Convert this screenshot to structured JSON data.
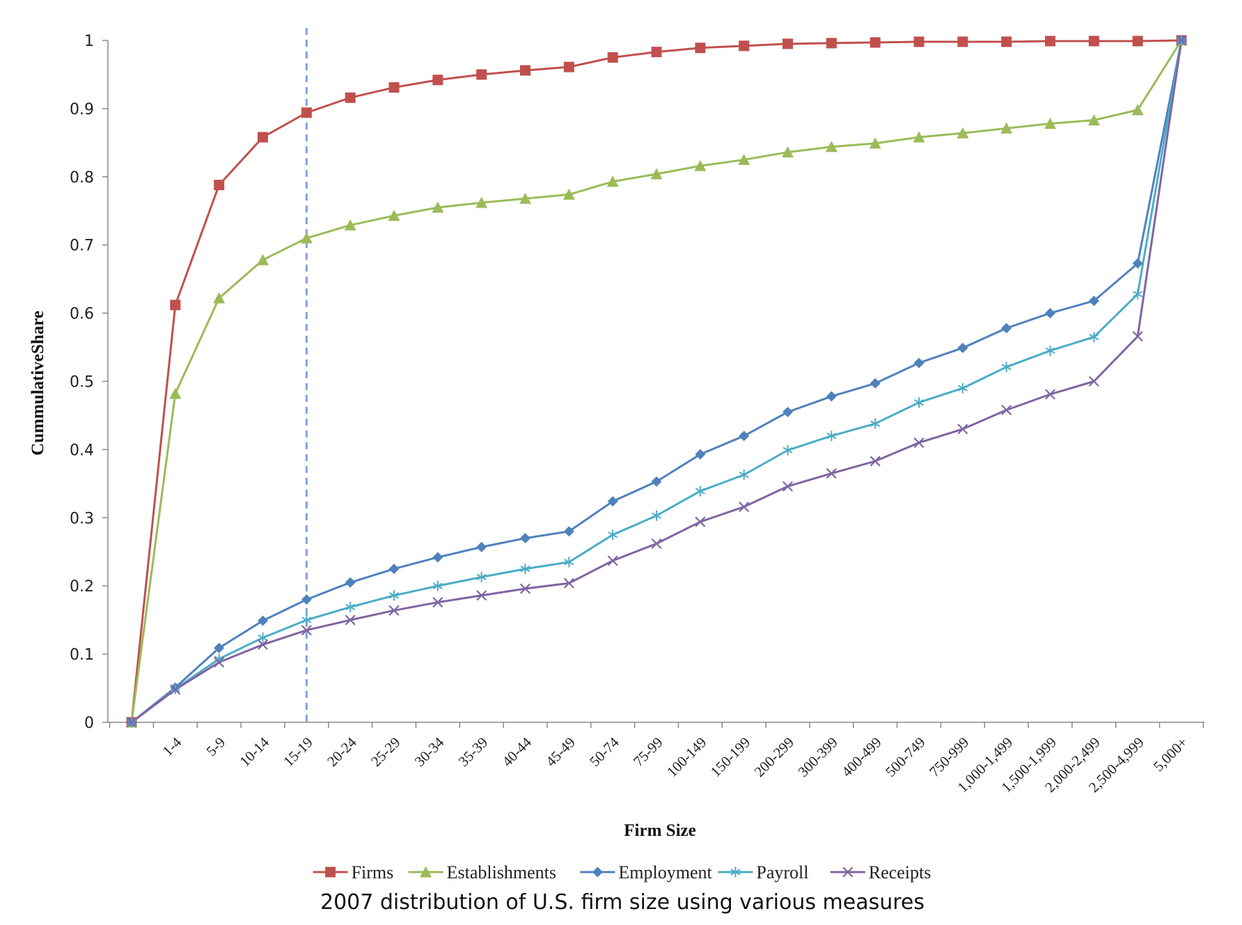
{
  "chart_data": {
    "type": "line",
    "title": "",
    "caption": "2007 distribution of U.S. firm size using various measures",
    "xlabel": "Firm Size",
    "ylabel": "CummulativeShare",
    "ylim": [
      0,
      1
    ],
    "yticks": [
      "0",
      "0.1",
      "0.2",
      "0.3",
      "0.4",
      "0.5",
      "0.6",
      "0.7",
      "0.8",
      "0.9",
      "1"
    ],
    "categories": [
      "",
      "1-4",
      "5-9",
      "10-14",
      "15-19",
      "20-24",
      "25-29",
      "30-34",
      "35-39",
      "40-44",
      "45-49",
      "50-74",
      "75-99",
      "100-149",
      "150-199",
      "200-299",
      "300-399",
      "400-499",
      "500-749",
      "750-999",
      "1,000-1,499",
      "1,500-1,999",
      "2,000-2,499",
      "2,500-4,999",
      "5,000+"
    ],
    "reference_line": {
      "category": "15-19",
      "style": "dashed",
      "color": "#7fa3d9"
    },
    "legend_position": "bottom",
    "grid": false,
    "series": [
      {
        "name": "Firms",
        "color": "#c0504d",
        "marker": "square",
        "values": [
          0,
          0.612,
          0.788,
          0.858,
          0.894,
          0.916,
          0.931,
          0.942,
          0.95,
          0.956,
          0.961,
          0.975,
          0.983,
          0.989,
          0.992,
          0.995,
          0.996,
          0.997,
          0.998,
          0.998,
          0.998,
          0.999,
          0.999,
          0.999,
          1.0
        ]
      },
      {
        "name": "Establishments",
        "color": "#9bbb59",
        "marker": "triangle",
        "values": [
          0,
          0.482,
          0.622,
          0.678,
          0.71,
          0.729,
          0.743,
          0.755,
          0.762,
          0.768,
          0.774,
          0.793,
          0.804,
          0.816,
          0.825,
          0.836,
          0.844,
          0.849,
          0.858,
          0.864,
          0.871,
          0.878,
          0.883,
          0.898,
          1.0
        ]
      },
      {
        "name": "Employment",
        "color": "#4f81bd",
        "marker": "diamond",
        "values": [
          0,
          0.051,
          0.109,
          0.149,
          0.18,
          0.205,
          0.225,
          0.242,
          0.257,
          0.27,
          0.28,
          0.324,
          0.353,
          0.393,
          0.42,
          0.455,
          0.478,
          0.497,
          0.527,
          0.549,
          0.578,
          0.6,
          0.618,
          0.673,
          1.0
        ]
      },
      {
        "name": "Payroll",
        "color": "#4bacc6",
        "marker": "asterisk",
        "values": [
          0,
          0.049,
          0.093,
          0.124,
          0.15,
          0.169,
          0.186,
          0.2,
          0.213,
          0.225,
          0.235,
          0.275,
          0.303,
          0.339,
          0.363,
          0.399,
          0.42,
          0.438,
          0.469,
          0.49,
          0.521,
          0.545,
          0.565,
          0.628,
          1.0
        ]
      },
      {
        "name": "Receipts",
        "color": "#8064a2",
        "marker": "x",
        "values": [
          0,
          0.048,
          0.088,
          0.114,
          0.135,
          0.15,
          0.164,
          0.176,
          0.186,
          0.196,
          0.204,
          0.237,
          0.262,
          0.294,
          0.316,
          0.346,
          0.365,
          0.383,
          0.41,
          0.43,
          0.458,
          0.481,
          0.5,
          0.566,
          1.0
        ]
      }
    ]
  }
}
